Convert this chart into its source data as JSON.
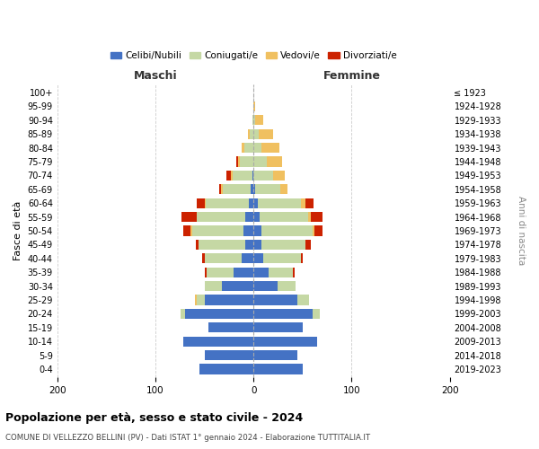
{
  "age_groups": [
    "100+",
    "95-99",
    "90-94",
    "85-89",
    "80-84",
    "75-79",
    "70-74",
    "65-69",
    "60-64",
    "55-59",
    "50-54",
    "45-49",
    "40-44",
    "35-39",
    "30-34",
    "25-29",
    "20-24",
    "15-19",
    "10-14",
    "5-9",
    "0-4"
  ],
  "birth_years": [
    "≤ 1923",
    "1924-1928",
    "1929-1933",
    "1934-1938",
    "1939-1943",
    "1944-1948",
    "1949-1953",
    "1954-1958",
    "1959-1963",
    "1964-1968",
    "1969-1973",
    "1974-1978",
    "1979-1983",
    "1984-1988",
    "1989-1993",
    "1994-1998",
    "1999-2003",
    "2004-2008",
    "2009-2013",
    "2014-2018",
    "2019-2023"
  ],
  "maschi_celibi": [
    0,
    0,
    0,
    0,
    0,
    0,
    1,
    3,
    5,
    8,
    10,
    8,
    12,
    20,
    32,
    50,
    70,
    46,
    72,
    50,
    55
  ],
  "maschi_coniugati": [
    0,
    0,
    1,
    4,
    9,
    14,
    20,
    28,
    44,
    50,
    52,
    48,
    38,
    28,
    18,
    8,
    4,
    0,
    0,
    0,
    0
  ],
  "maschi_vedovi": [
    0,
    0,
    0,
    2,
    3,
    2,
    2,
    2,
    1,
    0,
    2,
    0,
    0,
    0,
    0,
    2,
    0,
    0,
    0,
    0,
    0
  ],
  "maschi_divorziati": [
    0,
    0,
    0,
    0,
    0,
    2,
    5,
    2,
    8,
    15,
    8,
    3,
    2,
    2,
    0,
    0,
    0,
    0,
    0,
    0,
    0
  ],
  "femmine_nubili": [
    0,
    0,
    0,
    0,
    0,
    0,
    0,
    2,
    4,
    6,
    8,
    8,
    10,
    15,
    25,
    45,
    60,
    50,
    65,
    45,
    50
  ],
  "femmine_coniugate": [
    0,
    0,
    2,
    5,
    8,
    14,
    20,
    25,
    44,
    50,
    52,
    45,
    38,
    25,
    18,
    12,
    8,
    0,
    0,
    0,
    0
  ],
  "femmine_vedove": [
    0,
    2,
    8,
    15,
    18,
    15,
    12,
    8,
    5,
    2,
    2,
    0,
    0,
    0,
    0,
    0,
    0,
    0,
    0,
    0,
    0
  ],
  "femmine_divorziate": [
    0,
    0,
    0,
    0,
    0,
    0,
    0,
    0,
    8,
    12,
    8,
    5,
    2,
    2,
    0,
    0,
    0,
    0,
    0,
    0,
    0
  ],
  "colors": {
    "celibi": "#4472C4",
    "coniugati": "#C5D8A4",
    "vedovi": "#F0C060",
    "divorziati": "#CC2200"
  },
  "xlim": 200,
  "title": "Popolazione per età, sesso e stato civile - 2024",
  "subtitle": "COMUNE DI VELLEZZO BELLINI (PV) - Dati ISTAT 1° gennaio 2024 - Elaborazione TUTTITALIA.IT",
  "ylabel_left": "Fasce di età",
  "ylabel_right": "Anni di nascita",
  "legend_labels": [
    "Celibi/Nubili",
    "Coniugati/e",
    "Vedovi/e",
    "Divorziati/e"
  ]
}
